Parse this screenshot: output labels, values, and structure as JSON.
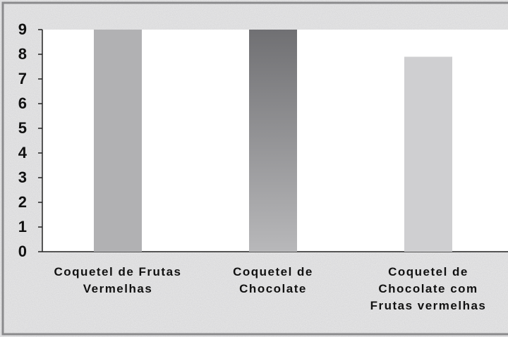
{
  "chart_data": {
    "type": "bar",
    "categories": [
      "Coquetel de Frutas Vermelhas",
      "Coquetel de Chocolate",
      "Coquetel de Chocolate com Frutas vermelhas"
    ],
    "values": [
      9,
      9,
      7.9
    ],
    "colors": [
      "#b1b1b3",
      "#707073",
      "#cfcfd1"
    ],
    "ylim": [
      0,
      9
    ],
    "yticks": [
      0,
      1,
      2,
      3,
      4,
      5,
      6,
      7,
      8,
      9
    ],
    "grid": false
  }
}
